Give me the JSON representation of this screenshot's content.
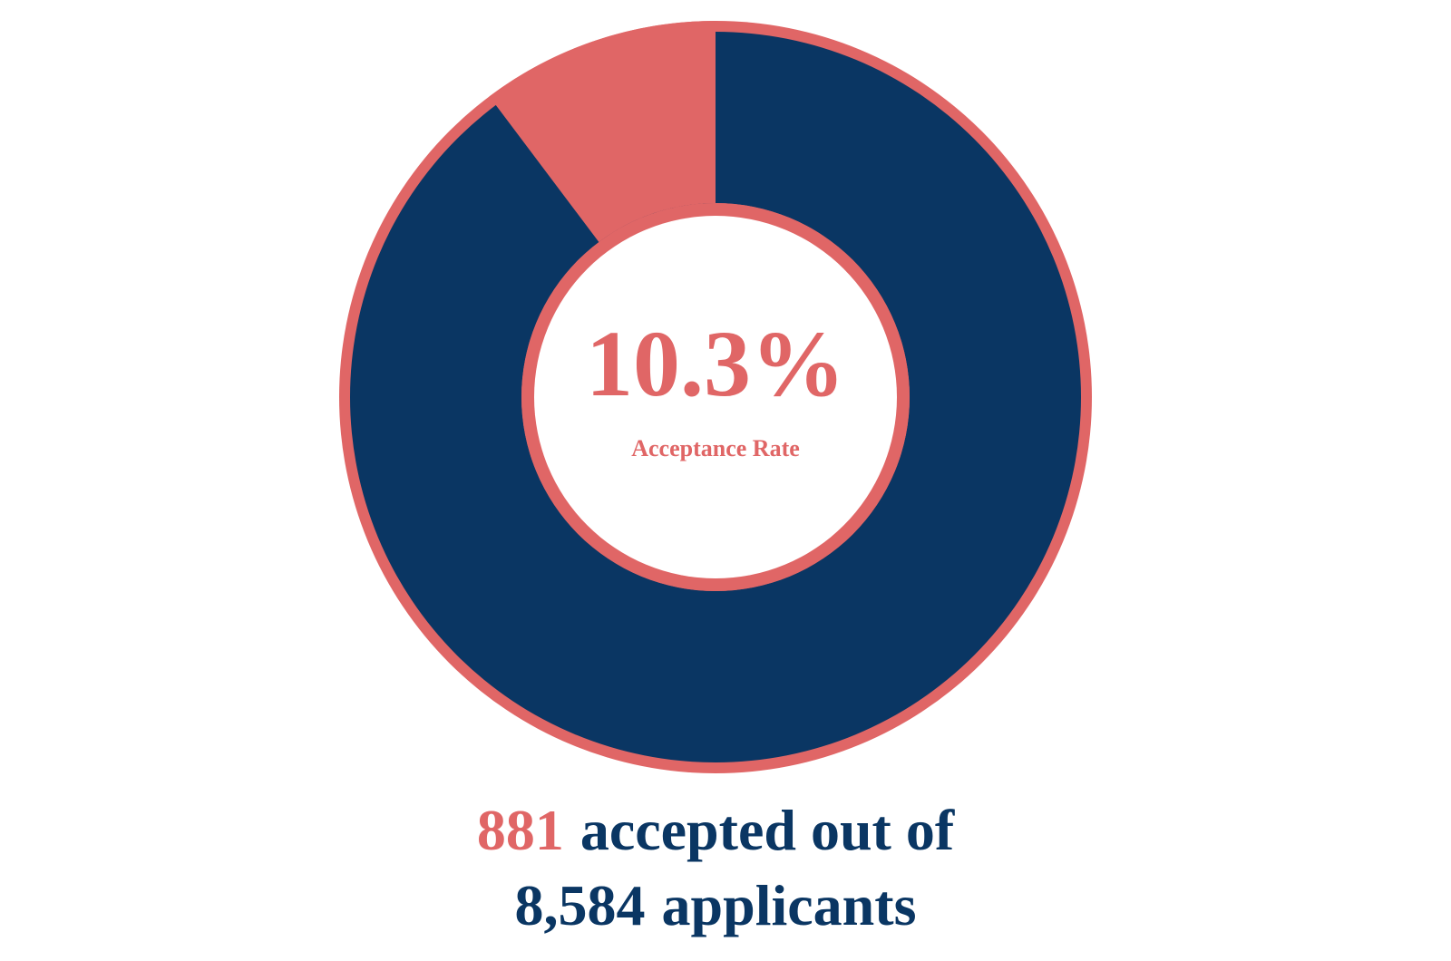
{
  "chart_data": {
    "type": "donut",
    "rate": {
      "value": 10.3,
      "label": "10.3%"
    },
    "rate_title": "Acceptance Rate",
    "accepted": 881,
    "accepted_text": "accepted out of",
    "applicants": {
      "value": 8584,
      "label": "8,584"
    },
    "applicants_text": "applicants",
    "accepted_color": "#e06666",
    "rest_color": "#0a3663"
  }
}
